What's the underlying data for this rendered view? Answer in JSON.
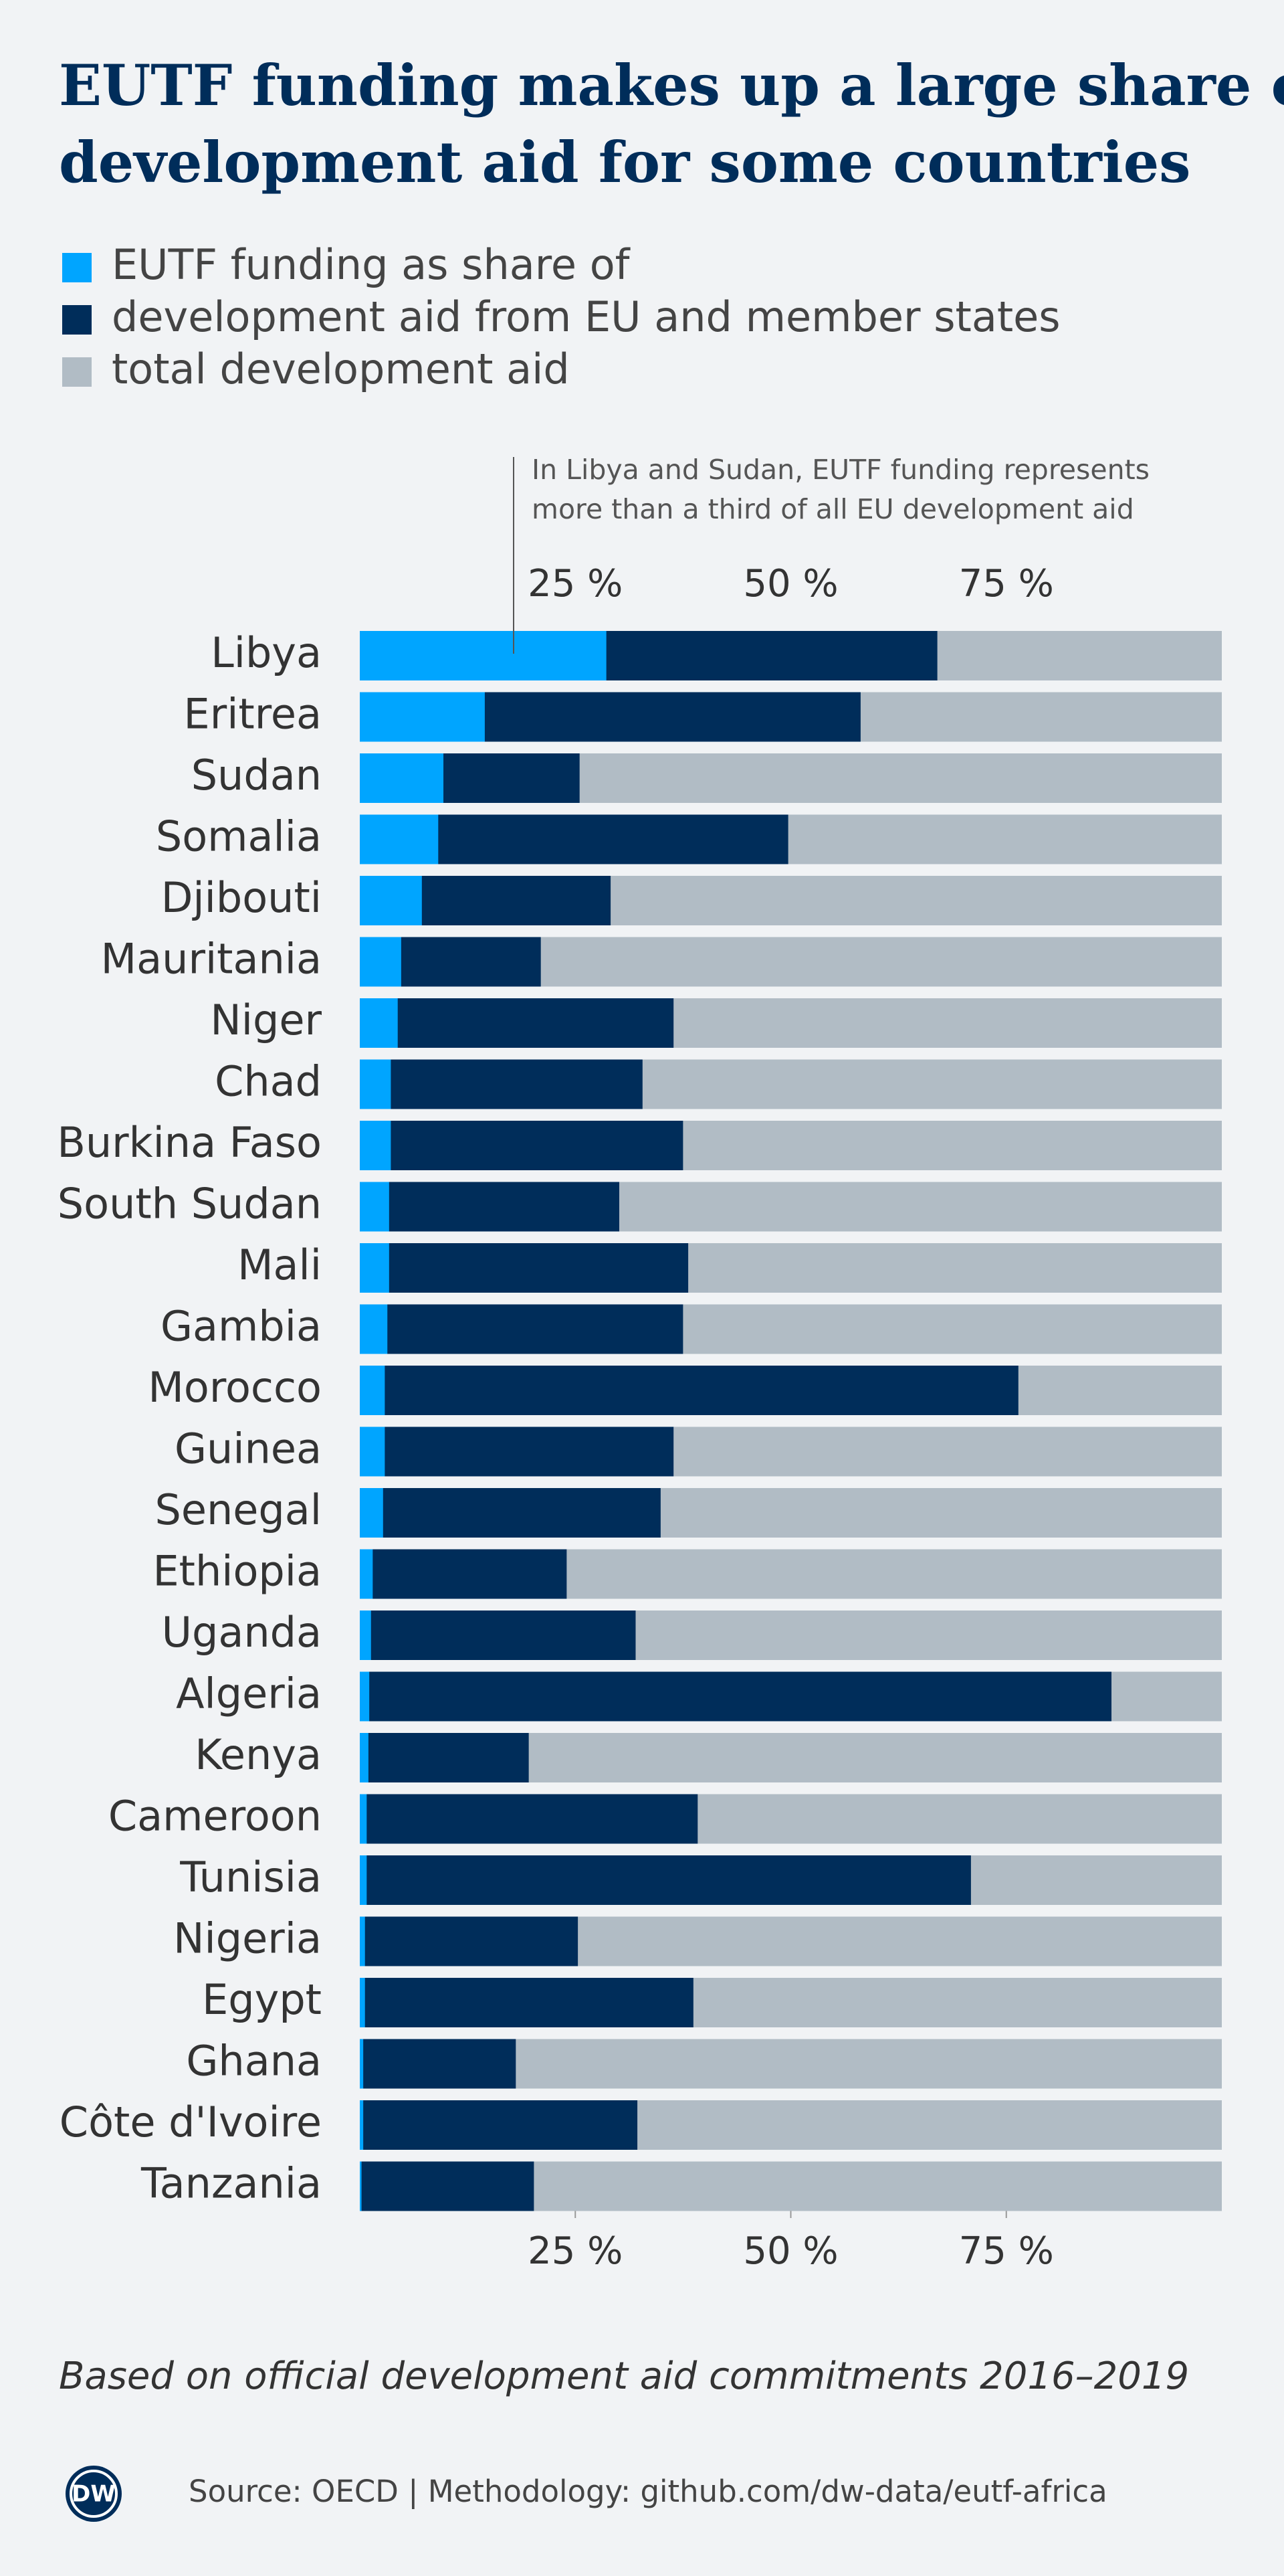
{
  "chart_data": {
    "type": "bar",
    "orientation": "horizontal",
    "title": [
      "EUTF funding makes up a large share of",
      "development aid for some countries"
    ],
    "annotation": [
      "In Libya and Sudan, EUTF funding represents",
      "more than a third of all EU development aid"
    ],
    "note": "Based on official development aid commitments 2016–2019",
    "source": "Source: OECD | Methodology: github.com/dw-data/eutf-africa",
    "logo": "DW",
    "categories": [
      "Libya",
      "Eritrea",
      "Sudan",
      "Somalia",
      "Djibouti",
      "Mauritania",
      "Niger",
      "Chad",
      "Burkina Faso",
      "South Sudan",
      "Mali",
      "Gambia",
      "Morocco",
      "Guinea",
      "Senegal",
      "Ethiopia",
      "Uganda",
      "Algeria",
      "Kenya",
      "Cameroon",
      "Tunisia",
      "Nigeria",
      "Egypt",
      "Ghana",
      "Côte d'Ivoire",
      "Tanzania"
    ],
    "series": [
      {
        "name": "EUTF funding as share of",
        "color": "#00a5ff",
        "values": [
          28.6,
          14.5,
          9.7,
          9.1,
          7.2,
          4.8,
          4.4,
          3.6,
          3.6,
          3.4,
          3.4,
          3.2,
          2.9,
          2.9,
          2.7,
          1.5,
          1.3,
          1.1,
          1.0,
          0.8,
          0.8,
          0.6,
          0.6,
          0.4,
          0.4,
          0.2
        ]
      },
      {
        "name": "development aid from EU and member states",
        "color": "#002d5a",
        "values": [
          67.0,
          58.1,
          25.5,
          49.7,
          29.1,
          21.0,
          36.4,
          32.8,
          37.5,
          30.1,
          38.1,
          37.5,
          76.4,
          36.4,
          34.9,
          24.0,
          32.0,
          87.2,
          19.6,
          39.2,
          70.9,
          25.3,
          38.7,
          18.1,
          32.2,
          20.2
        ]
      }
    ],
    "background": {
      "name": "total development aid",
      "color": "#b1bcc5"
    },
    "xlim": [
      0,
      100
    ],
    "xticks": [
      {
        "value": 25,
        "label": "25 %"
      },
      {
        "value": 50,
        "label": "50 %"
      },
      {
        "value": 75,
        "label": "75 %"
      }
    ],
    "grid": false
  }
}
